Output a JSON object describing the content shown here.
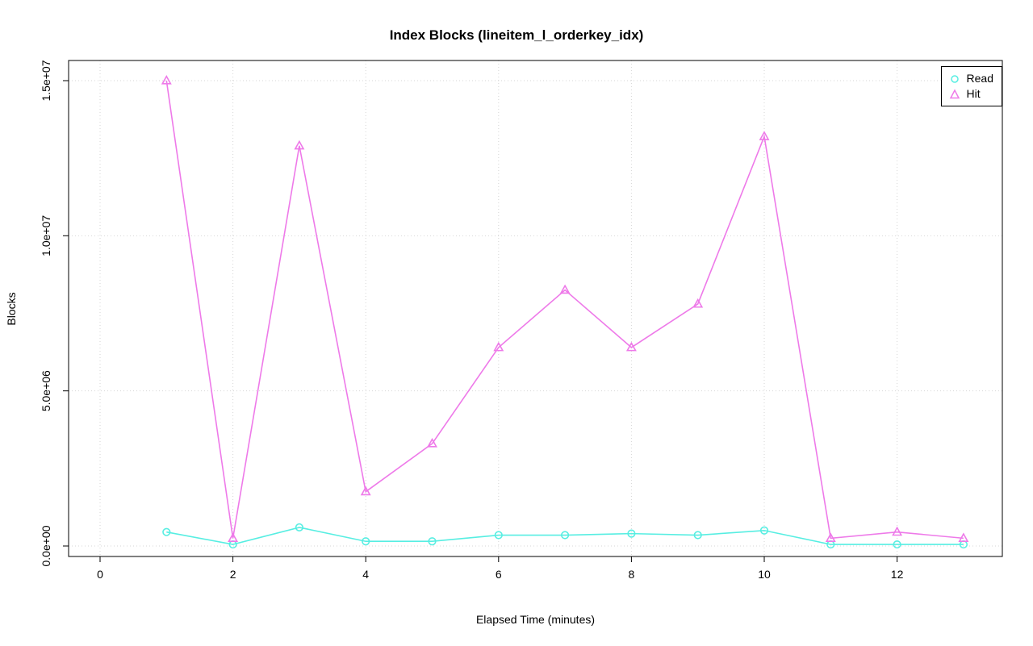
{
  "chart_data": {
    "type": "line",
    "title": "Index Blocks (lineitem_l_orderkey_idx)",
    "xlabel": "Elapsed Time (minutes)",
    "ylabel": "Blocks",
    "xlim": [
      0,
      13
    ],
    "ylim": [
      0,
      15000000
    ],
    "x_ticks": [
      0,
      2,
      4,
      6,
      8,
      10,
      12
    ],
    "x_tick_labels": [
      "0",
      "2",
      "4",
      "6",
      "8",
      "10",
      "12"
    ],
    "y_ticks": [
      0,
      5000000,
      10000000,
      15000000
    ],
    "y_tick_labels": [
      "0.0e+00",
      "5.0e+06",
      "1.0e+07",
      "1.5e+07"
    ],
    "grid": "dotted",
    "legend_position": "top-right",
    "x": [
      1,
      2,
      3,
      4,
      5,
      6,
      7,
      8,
      9,
      10,
      11,
      12,
      13
    ],
    "series": [
      {
        "name": "Read",
        "color": "#57EEE2",
        "marker": "circle",
        "values": [
          450000,
          50000,
          600000,
          150000,
          150000,
          350000,
          350000,
          400000,
          350000,
          500000,
          50000,
          50000,
          50000
        ]
      },
      {
        "name": "Hit",
        "color": "#EE7AE9",
        "marker": "triangle",
        "values": [
          15000000,
          250000,
          12900000,
          1750000,
          3300000,
          6400000,
          8250000,
          6400000,
          7800000,
          13200000,
          250000,
          450000,
          250000
        ]
      }
    ]
  }
}
